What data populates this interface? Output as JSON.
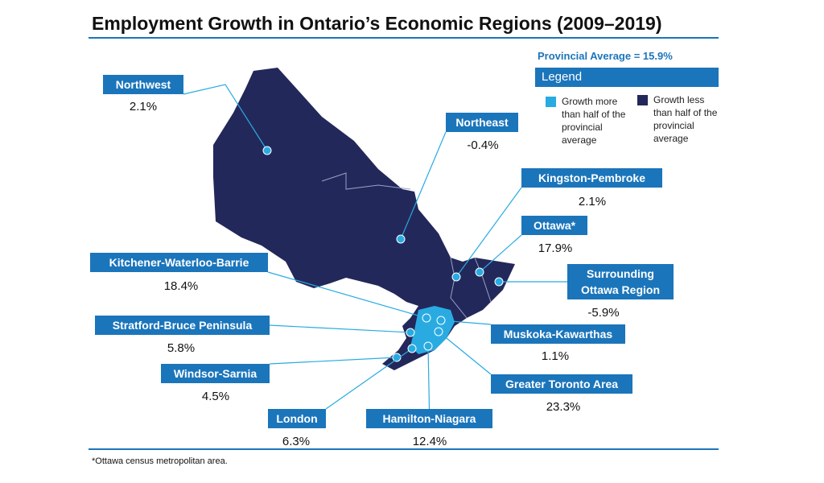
{
  "title": "Employment Growth in Ontario’s Economic Regions (2009–2019)",
  "provincial_average": "Provincial Average = 15.9%",
  "legend": {
    "title": "Legend",
    "items": [
      {
        "label": "Growth more than half of the provincial average",
        "color": "#29abe2"
      },
      {
        "label": "Growth less than half of the provincial average",
        "color": "#23285a"
      }
    ]
  },
  "regions": [
    {
      "name": "Northwest",
      "value": "2.1%"
    },
    {
      "name": "Northeast",
      "value": "-0.4%"
    },
    {
      "name": "Kingston-Pembroke",
      "value": "2.1%"
    },
    {
      "name": "Ottawa*",
      "value": "17.9%"
    },
    {
      "name": "Surrounding Ottawa Region",
      "value": "-5.9%"
    },
    {
      "name": "Kitchener-Waterloo-Barrie",
      "value": "18.4%"
    },
    {
      "name": "Stratford-Bruce Peninsula",
      "value": "5.8%"
    },
    {
      "name": "Muskoka-Kawarthas",
      "value": "1.1%"
    },
    {
      "name": "Windsor-Sarnia",
      "value": "4.5%"
    },
    {
      "name": "Greater Toronto Area",
      "value": "23.3%"
    },
    {
      "name": "London",
      "value": "6.3%"
    },
    {
      "name": "Hamilton-Niagara",
      "value": "12.4%"
    }
  ],
  "footnote": "*Ottawa census metropolitan area."
}
